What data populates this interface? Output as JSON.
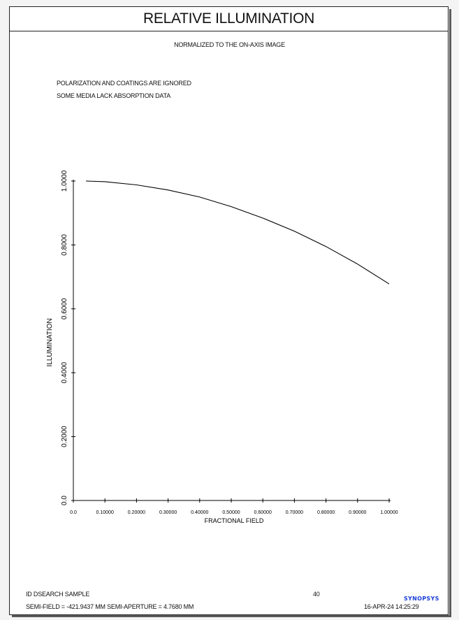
{
  "report": {
    "title": "RELATIVE ILLUMINATION",
    "subtitle": "NORMALIZED TO THE ON-AXIS IMAGE",
    "notes": [
      "POLARIZATION AND COATINGS ARE IGNORED",
      "SOME MEDIA LACK ABSORPTION DATA"
    ]
  },
  "footer": {
    "id": "ID DSEARCH SAMPLE",
    "page": "40",
    "semi": "SEMI-FIELD = -421.9437 MM   SEMI-APERTURE =  4.7680 MM",
    "date": "16-APR-24  14:25:29",
    "logo": "SYNOPSYS"
  },
  "colors": {
    "line": "#000000",
    "logo": "#1a3fd6"
  },
  "chart_data": {
    "type": "line",
    "xlabel": "FRACTIONAL FIELD",
    "ylabel": "ILLUMINATION",
    "xlim": [
      0,
      1
    ],
    "ylim": [
      0,
      1
    ],
    "x_ticks": [
      "0.0",
      "0.10000",
      "0.20000",
      "0.30000",
      "0.40000",
      "0.50000",
      "0.60000",
      "0.70000",
      "0.80000",
      "0.90000",
      "1.00000"
    ],
    "y_ticks": [
      "0.0",
      "0.2000",
      "0.4000",
      "0.6000",
      "0.8000",
      "1.0000"
    ],
    "grid": false,
    "series": [
      {
        "x": [
          0.04,
          0.1,
          0.2,
          0.3,
          0.4,
          0.5,
          0.6,
          0.7,
          0.8,
          0.9,
          1.0
        ],
        "y": [
          1.0,
          0.998,
          0.988,
          0.972,
          0.95,
          0.92,
          0.884,
          0.843,
          0.795,
          0.74,
          0.678
        ]
      }
    ]
  }
}
